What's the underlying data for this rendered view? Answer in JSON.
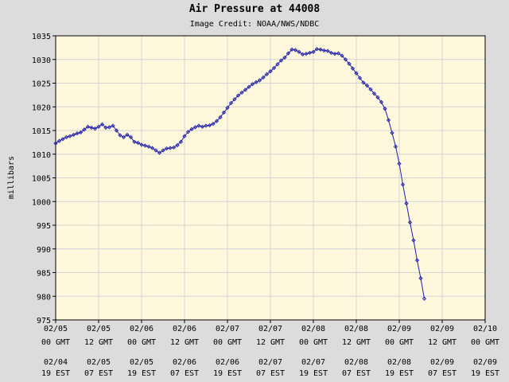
{
  "title": "Air Pressure at 44008",
  "subtitle": "Image Credit: NOAA/NWS/NDBC",
  "colors": {
    "background": "#dcdcdc",
    "plot_background": "#fff8dc",
    "grid": "#d3d3d3",
    "series": "#1e1ea8"
  },
  "chart_data": {
    "type": "line",
    "title": "Air Pressure at 44008",
    "ylabel": "millibars",
    "ylim": [
      975,
      1035
    ],
    "yticks": [
      975,
      980,
      985,
      990,
      995,
      1000,
      1005,
      1010,
      1015,
      1020,
      1025,
      1030,
      1035
    ],
    "xlim": [
      "02/05 00 GMT",
      "02/10 00 GMT"
    ],
    "grid": true,
    "xticks": [
      {
        "top": "02/05",
        "mid": "00 GMT",
        "d2": "02/04",
        "t2": "19 EST"
      },
      {
        "top": "02/05",
        "mid": "12 GMT",
        "d2": "02/05",
        "t2": "07 EST"
      },
      {
        "top": "02/06",
        "mid": "00 GMT",
        "d2": "02/05",
        "t2": "19 EST"
      },
      {
        "top": "02/06",
        "mid": "12 GMT",
        "d2": "02/06",
        "t2": "07 EST"
      },
      {
        "top": "02/07",
        "mid": "00 GMT",
        "d2": "02/06",
        "t2": "19 EST"
      },
      {
        "top": "02/07",
        "mid": "12 GMT",
        "d2": "02/07",
        "t2": "07 EST"
      },
      {
        "top": "02/08",
        "mid": "00 GMT",
        "d2": "02/07",
        "t2": "19 EST"
      },
      {
        "top": "02/08",
        "mid": "12 GMT",
        "d2": "02/08",
        "t2": "07 EST"
      },
      {
        "top": "02/09",
        "mid": "00 GMT",
        "d2": "02/08",
        "t2": "19 EST"
      },
      {
        "top": "02/09",
        "mid": "12 GMT",
        "d2": "02/09",
        "t2": "07 EST"
      },
      {
        "top": "02/10",
        "mid": "00 GMT",
        "d2": "02/09",
        "t2": "19 EST"
      }
    ],
    "x_unit": "hours since 02/05 00 GMT",
    "series": [
      {
        "points": [
          [
            0,
            1012.3
          ],
          [
            1,
            1012.8
          ],
          [
            2,
            1013.2
          ],
          [
            3,
            1013.6
          ],
          [
            4,
            1013.8
          ],
          [
            5,
            1014.1
          ],
          [
            6,
            1014.4
          ],
          [
            7,
            1014.6
          ],
          [
            8,
            1015.2
          ],
          [
            9,
            1015.8
          ],
          [
            10,
            1015.6
          ],
          [
            11,
            1015.4
          ],
          [
            12,
            1015.8
          ],
          [
            13,
            1016.3
          ],
          [
            14,
            1015.6
          ],
          [
            15,
            1015.7
          ],
          [
            16,
            1016.0
          ],
          [
            17,
            1015.0
          ],
          [
            18,
            1014.0
          ],
          [
            19,
            1013.6
          ],
          [
            20,
            1014.1
          ],
          [
            21,
            1013.6
          ],
          [
            22,
            1012.6
          ],
          [
            23,
            1012.4
          ],
          [
            24,
            1012.0
          ],
          [
            25,
            1011.8
          ],
          [
            26,
            1011.6
          ],
          [
            27,
            1011.3
          ],
          [
            28,
            1010.8
          ],
          [
            29,
            1010.3
          ],
          [
            30,
            1010.8
          ],
          [
            31,
            1011.2
          ],
          [
            32,
            1011.3
          ],
          [
            33,
            1011.4
          ],
          [
            34,
            1011.9
          ],
          [
            35,
            1012.6
          ],
          [
            36,
            1013.8
          ],
          [
            37,
            1014.7
          ],
          [
            38,
            1015.3
          ],
          [
            39,
            1015.7
          ],
          [
            40,
            1016.0
          ],
          [
            41,
            1015.8
          ],
          [
            42,
            1016.0
          ],
          [
            43,
            1016.1
          ],
          [
            44,
            1016.4
          ],
          [
            45,
            1017.0
          ],
          [
            46,
            1017.8
          ],
          [
            47,
            1018.8
          ],
          [
            48,
            1019.8
          ],
          [
            49,
            1020.8
          ],
          [
            50,
            1021.6
          ],
          [
            51,
            1022.4
          ],
          [
            52,
            1023.0
          ],
          [
            53,
            1023.6
          ],
          [
            54,
            1024.2
          ],
          [
            55,
            1024.8
          ],
          [
            56,
            1025.2
          ],
          [
            57,
            1025.6
          ],
          [
            58,
            1026.2
          ],
          [
            59,
            1026.9
          ],
          [
            60,
            1027.5
          ],
          [
            61,
            1028.2
          ],
          [
            62,
            1029.0
          ],
          [
            63,
            1029.8
          ],
          [
            64,
            1030.4
          ],
          [
            65,
            1031.3
          ],
          [
            66,
            1032.1
          ],
          [
            67,
            1032.0
          ],
          [
            68,
            1031.6
          ],
          [
            69,
            1031.1
          ],
          [
            70,
            1031.2
          ],
          [
            71,
            1031.4
          ],
          [
            72,
            1031.6
          ],
          [
            73,
            1032.2
          ],
          [
            74,
            1032.1
          ],
          [
            75,
            1031.9
          ],
          [
            76,
            1031.8
          ],
          [
            77,
            1031.4
          ],
          [
            78,
            1031.2
          ],
          [
            79,
            1031.3
          ],
          [
            80,
            1030.8
          ],
          [
            81,
            1030.0
          ],
          [
            82,
            1029.1
          ],
          [
            83,
            1028.1
          ],
          [
            84,
            1027.1
          ],
          [
            85,
            1026.1
          ],
          [
            86,
            1025.1
          ],
          [
            87,
            1024.5
          ],
          [
            88,
            1023.7
          ],
          [
            89,
            1022.8
          ],
          [
            90,
            1022.0
          ],
          [
            91,
            1021.0
          ],
          [
            92,
            1019.6
          ],
          [
            93,
            1017.2
          ],
          [
            94,
            1014.5
          ],
          [
            95,
            1011.6
          ],
          [
            96,
            1008.0
          ],
          [
            97,
            1003.6
          ],
          [
            98,
            999.6
          ],
          [
            99,
            995.6
          ],
          [
            100,
            991.8
          ],
          [
            101,
            987.6
          ],
          [
            102,
            983.8
          ],
          [
            103,
            979.5
          ]
        ]
      }
    ]
  }
}
